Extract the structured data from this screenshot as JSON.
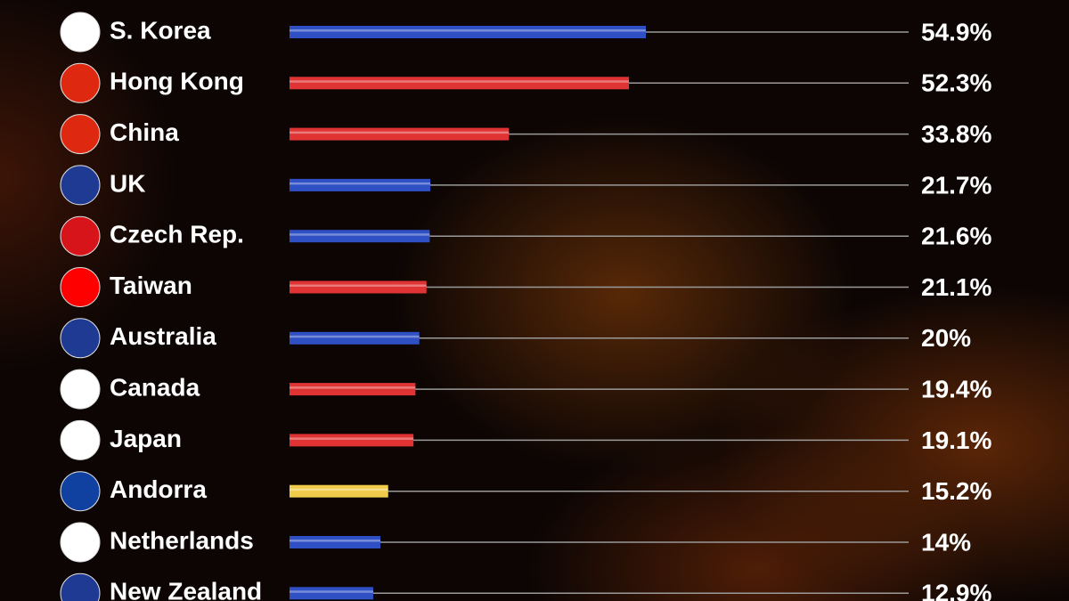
{
  "chart_data": {
    "type": "bar",
    "orientation": "horizontal",
    "categories": [
      "S. Korea",
      "Hong Kong",
      "China",
      "UK",
      "Czech Rep.",
      "Taiwan",
      "Australia",
      "Canada",
      "Japan",
      "Andorra",
      "Netherlands",
      "New Zealand"
    ],
    "values": [
      54.9,
      52.3,
      33.8,
      21.7,
      21.6,
      21.1,
      20,
      19.4,
      19.1,
      15.2,
      14,
      12.9
    ],
    "value_labels": [
      "54.9%",
      "52.3%",
      "33.8%",
      "21.7%",
      "21.6%",
      "21.1%",
      "20%",
      "19.4%",
      "19.1%",
      "15.2%",
      "14%",
      "12.9%"
    ],
    "colors": [
      "#2f4fc4",
      "#e03434",
      "#e03434",
      "#2f4fc4",
      "#2f4fc4",
      "#e03434",
      "#2f4fc4",
      "#e03434",
      "#e03434",
      "#f0cc4a",
      "#2f4fc4",
      "#2f4fc4"
    ]
  }
}
